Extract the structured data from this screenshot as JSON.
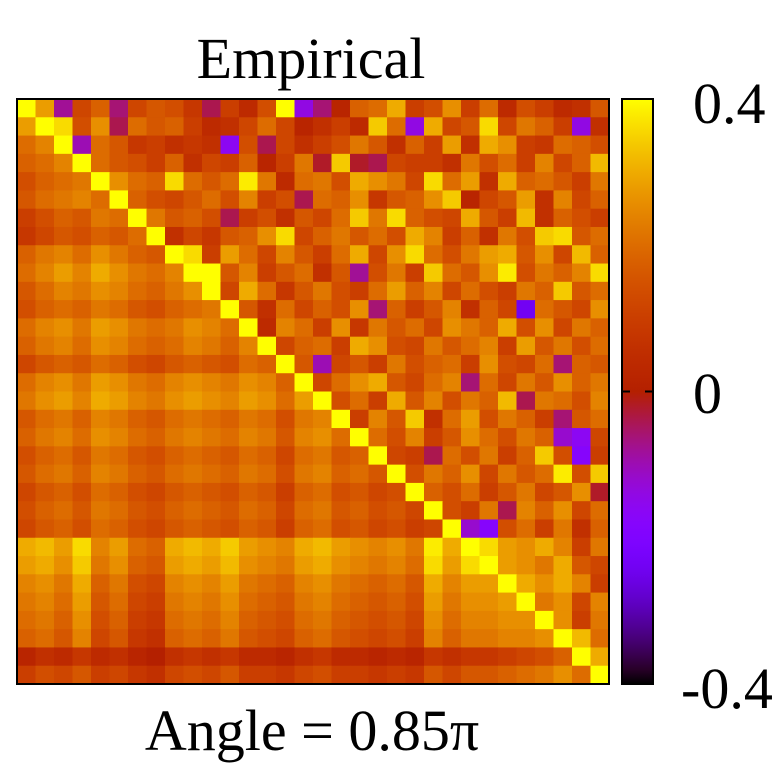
{
  "chart_data": {
    "type": "heatmap",
    "title": "Empirical",
    "xlabel": "Angle = 0.85π",
    "ylabel": "",
    "matrix_size": 32,
    "colorbar": {
      "min": -0.4,
      "max": 0.4,
      "tick_labels": [
        "0.4",
        "0",
        "-0.4"
      ],
      "tick_values": [
        0.4,
        0,
        -0.4
      ],
      "palette": "gnuplot (black-purple-red-orange-yellow)"
    },
    "colors": {
      "frame": "#000000",
      "background": "#ffffff"
    },
    "layout_notes": "Symmetric-looking correlation matrix with diagonal = 0.4 (yellow). Lower triangle smoother (orange, block structure), upper triangle noisier with scattered negative (purple) values.",
    "values": [
      [
        0.4,
        0.28,
        -0.08,
        0.12,
        0.18,
        -0.06,
        0.12,
        0.16,
        0.14,
        0.08,
        -0.04,
        0.1,
        0.04,
        0.14,
        0.4,
        -0.14,
        -0.06,
        0.02,
        0.18,
        0.2,
        0.3,
        0.1,
        0.14,
        0.26,
        0.1,
        0.2,
        0.04,
        0.14,
        0.1,
        0.04,
        0.06,
        0.16
      ],
      [
        0.28,
        0.4,
        0.36,
        0.14,
        0.26,
        -0.04,
        0.2,
        0.16,
        0.18,
        0.1,
        0.04,
        0.06,
        0.12,
        0.2,
        0.12,
        0.02,
        0.06,
        0.1,
        0.04,
        0.34,
        0.2,
        -0.14,
        0.3,
        0.12,
        0.16,
        0.36,
        0.12,
        0.22,
        0.18,
        0.1,
        -0.14,
        0.06
      ],
      [
        0.2,
        0.24,
        0.4,
        -0.1,
        0.2,
        0.16,
        0.08,
        0.1,
        0.06,
        0.08,
        0.06,
        -0.16,
        0.14,
        -0.04,
        0.12,
        0.06,
        0.1,
        0.14,
        0.22,
        0.16,
        0.06,
        0.18,
        0.1,
        0.28,
        0.06,
        0.3,
        0.26,
        0.1,
        0.08,
        0.2,
        0.18,
        0.14
      ],
      [
        0.18,
        0.2,
        0.24,
        0.4,
        0.2,
        0.16,
        0.14,
        0.1,
        0.18,
        0.06,
        0.12,
        0.1,
        0.18,
        0.02,
        0.1,
        0.22,
        -0.02,
        0.34,
        -0.02,
        -0.04,
        0.12,
        0.1,
        0.1,
        0.06,
        0.22,
        0.14,
        0.2,
        0.1,
        0.24,
        0.12,
        0.18,
        0.32
      ],
      [
        0.14,
        0.18,
        0.2,
        0.22,
        0.4,
        0.26,
        0.2,
        0.18,
        0.36,
        0.2,
        0.16,
        0.2,
        0.38,
        0.22,
        0.04,
        0.2,
        0.22,
        0.14,
        0.3,
        0.26,
        0.22,
        0.12,
        0.36,
        0.2,
        0.28,
        0.06,
        0.3,
        0.18,
        0.2,
        0.16,
        0.1,
        0.22
      ],
      [
        0.16,
        0.2,
        0.22,
        0.24,
        0.2,
        0.4,
        0.18,
        0.14,
        0.12,
        0.16,
        0.2,
        0.14,
        0.24,
        0.1,
        0.14,
        -0.04,
        0.2,
        0.18,
        0.26,
        0.08,
        0.16,
        0.18,
        0.26,
        0.34,
        0.02,
        0.12,
        0.16,
        0.28,
        0.06,
        0.24,
        0.12,
        0.18
      ],
      [
        0.1,
        0.14,
        0.18,
        0.16,
        0.22,
        0.2,
        0.4,
        0.22,
        0.16,
        0.18,
        0.14,
        -0.04,
        0.1,
        0.14,
        0.06,
        0.16,
        0.12,
        0.2,
        0.34,
        0.22,
        0.36,
        0.18,
        0.14,
        0.12,
        0.3,
        0.16,
        0.1,
        0.32,
        0.06,
        0.18,
        0.14,
        0.1
      ],
      [
        0.08,
        0.12,
        0.16,
        0.14,
        0.18,
        0.16,
        0.2,
        0.4,
        0.06,
        0.12,
        0.08,
        0.16,
        0.18,
        0.26,
        0.36,
        0.12,
        0.18,
        0.22,
        0.16,
        0.2,
        0.14,
        0.3,
        0.24,
        0.1,
        0.18,
        0.06,
        0.22,
        0.14,
        0.34,
        0.36,
        0.16,
        0.2
      ],
      [
        0.18,
        0.22,
        0.24,
        0.2,
        0.26,
        0.22,
        0.18,
        0.16,
        0.4,
        0.36,
        0.1,
        0.28,
        0.2,
        0.12,
        0.24,
        0.16,
        0.1,
        0.2,
        0.3,
        0.12,
        0.26,
        0.36,
        0.2,
        0.14,
        0.22,
        0.28,
        0.3,
        0.16,
        0.26,
        0.12,
        0.32,
        0.18
      ],
      [
        0.2,
        0.24,
        0.28,
        0.24,
        0.3,
        0.26,
        0.22,
        0.2,
        0.24,
        0.4,
        0.4,
        0.16,
        0.24,
        0.1,
        0.16,
        0.2,
        0.06,
        0.16,
        -0.08,
        0.14,
        0.22,
        0.1,
        0.34,
        0.2,
        0.16,
        0.26,
        0.38,
        0.14,
        0.22,
        0.18,
        0.24,
        0.36
      ],
      [
        0.16,
        0.2,
        0.24,
        0.22,
        0.26,
        0.24,
        0.2,
        0.18,
        0.22,
        0.26,
        0.4,
        0.12,
        0.3,
        0.2,
        0.08,
        0.16,
        0.22,
        0.14,
        0.1,
        0.2,
        0.28,
        0.18,
        0.24,
        0.12,
        0.2,
        0.14,
        0.1,
        0.22,
        0.18,
        0.34,
        0.16,
        0.2
      ],
      [
        0.14,
        0.18,
        0.2,
        0.18,
        0.22,
        0.2,
        0.16,
        0.14,
        0.18,
        0.2,
        0.22,
        0.4,
        0.16,
        0.06,
        0.2,
        0.12,
        0.18,
        0.14,
        0.26,
        -0.06,
        0.18,
        0.1,
        0.16,
        0.24,
        0.06,
        0.18,
        0.12,
        -0.24,
        0.2,
        0.16,
        0.12,
        0.26
      ],
      [
        0.2,
        0.24,
        0.26,
        0.22,
        0.28,
        0.26,
        0.22,
        0.2,
        0.22,
        0.26,
        0.24,
        0.2,
        0.4,
        0.04,
        0.24,
        0.2,
        0.1,
        0.26,
        0.08,
        0.22,
        0.16,
        0.2,
        0.12,
        0.26,
        0.22,
        0.18,
        0.3,
        0.14,
        0.26,
        0.12,
        0.22,
        0.18
      ],
      [
        0.18,
        0.22,
        0.24,
        0.2,
        0.26,
        0.24,
        0.2,
        0.18,
        0.2,
        0.24,
        0.22,
        0.18,
        0.24,
        0.4,
        0.12,
        0.18,
        0.2,
        0.1,
        0.3,
        0.26,
        0.14,
        0.12,
        0.22,
        0.16,
        0.2,
        0.24,
        0.1,
        0.28,
        0.16,
        0.22,
        0.14,
        0.2
      ],
      [
        0.12,
        0.16,
        0.18,
        0.16,
        0.2,
        0.18,
        0.14,
        0.12,
        0.16,
        0.18,
        0.16,
        0.14,
        0.2,
        0.18,
        0.4,
        0.16,
        -0.1,
        0.12,
        0.16,
        0.1,
        0.22,
        0.14,
        0.18,
        0.2,
        0.1,
        0.26,
        0.14,
        0.12,
        0.2,
        -0.06,
        0.18,
        0.16
      ],
      [
        0.2,
        0.24,
        0.26,
        0.22,
        0.28,
        0.26,
        0.22,
        0.2,
        0.24,
        0.26,
        0.24,
        0.22,
        0.26,
        0.24,
        0.18,
        0.4,
        0.12,
        0.2,
        0.26,
        0.3,
        0.16,
        0.12,
        0.2,
        0.24,
        -0.06,
        0.2,
        0.12,
        0.22,
        0.16,
        0.26,
        0.18,
        0.22
      ],
      [
        0.22,
        0.26,
        0.28,
        0.24,
        0.3,
        0.28,
        0.24,
        0.22,
        0.26,
        0.28,
        0.26,
        0.24,
        0.28,
        0.26,
        0.2,
        0.28,
        0.4,
        0.14,
        0.2,
        0.1,
        0.3,
        0.16,
        0.24,
        0.14,
        0.22,
        0.18,
        0.32,
        -0.04,
        0.22,
        0.2,
        0.14,
        0.24
      ],
      [
        0.16,
        0.2,
        0.22,
        0.18,
        0.24,
        0.22,
        0.18,
        0.16,
        0.2,
        0.22,
        0.2,
        0.18,
        0.22,
        0.2,
        0.14,
        0.22,
        0.24,
        0.4,
        0.1,
        0.24,
        0.16,
        0.34,
        0.06,
        0.2,
        0.28,
        0.14,
        0.22,
        0.18,
        0.1,
        -0.06,
        0.16,
        0.2
      ],
      [
        0.18,
        0.22,
        0.24,
        0.2,
        0.26,
        0.24,
        0.2,
        0.18,
        0.22,
        0.24,
        0.22,
        0.2,
        0.24,
        0.22,
        0.16,
        0.24,
        0.26,
        0.2,
        0.4,
        0.2,
        0.14,
        0.24,
        0.1,
        0.16,
        0.26,
        0.2,
        0.14,
        0.22,
        0.18,
        -0.12,
        -0.16,
        0.12
      ],
      [
        0.14,
        0.18,
        0.2,
        0.16,
        0.22,
        0.2,
        0.16,
        0.14,
        0.18,
        0.2,
        0.18,
        0.16,
        0.2,
        0.18,
        0.12,
        0.2,
        0.22,
        0.16,
        0.18,
        0.4,
        0.12,
        0.1,
        -0.04,
        0.2,
        0.14,
        0.22,
        0.1,
        0.18,
        0.34,
        0.14,
        -0.18,
        0.1
      ],
      [
        0.16,
        0.2,
        0.22,
        0.18,
        0.24,
        0.22,
        0.18,
        0.16,
        0.2,
        0.22,
        0.2,
        0.18,
        0.22,
        0.2,
        0.14,
        0.22,
        0.24,
        0.18,
        0.2,
        0.16,
        0.4,
        0.14,
        0.22,
        0.18,
        0.26,
        0.12,
        0.22,
        0.16,
        0.2,
        0.38,
        0.14,
        0.34
      ],
      [
        0.12,
        0.16,
        0.18,
        0.14,
        0.2,
        0.18,
        0.14,
        0.12,
        0.16,
        0.18,
        0.16,
        0.14,
        0.18,
        0.16,
        0.1,
        0.18,
        0.2,
        0.14,
        0.16,
        0.12,
        0.14,
        0.4,
        0.18,
        0.14,
        0.2,
        0.1,
        0.16,
        0.22,
        0.12,
        0.16,
        0.26,
        -0.02
      ],
      [
        0.14,
        0.18,
        0.2,
        0.16,
        0.22,
        0.2,
        0.16,
        0.14,
        0.18,
        0.2,
        0.18,
        0.16,
        0.2,
        0.18,
        0.12,
        0.2,
        0.22,
        0.16,
        0.18,
        0.14,
        0.16,
        0.12,
        0.4,
        0.14,
        0.1,
        0.22,
        -0.04,
        0.24,
        0.18,
        0.26,
        0.12,
        0.2
      ],
      [
        0.12,
        0.16,
        0.18,
        0.14,
        0.2,
        0.18,
        0.14,
        0.12,
        0.16,
        0.18,
        0.16,
        0.14,
        0.18,
        0.16,
        0.1,
        0.18,
        0.2,
        0.14,
        0.16,
        0.12,
        0.14,
        0.1,
        0.12,
        0.4,
        -0.12,
        -0.18,
        0.14,
        0.2,
        0.1,
        0.22,
        0.06,
        0.18
      ],
      [
        0.3,
        0.32,
        0.28,
        0.36,
        0.24,
        0.28,
        0.2,
        0.18,
        0.3,
        0.32,
        0.3,
        0.34,
        0.28,
        0.26,
        0.24,
        0.3,
        0.32,
        0.28,
        0.26,
        0.24,
        0.26,
        0.22,
        0.38,
        0.3,
        0.4,
        0.36,
        0.28,
        0.26,
        0.3,
        0.24,
        0.1,
        0.22
      ],
      [
        0.28,
        0.3,
        0.26,
        0.34,
        0.22,
        0.26,
        0.18,
        0.16,
        0.28,
        0.3,
        0.28,
        0.32,
        0.26,
        0.24,
        0.22,
        0.28,
        0.3,
        0.26,
        0.24,
        0.22,
        0.24,
        0.2,
        0.36,
        0.28,
        0.36,
        0.4,
        0.28,
        0.26,
        0.22,
        0.3,
        0.16,
        0.12
      ],
      [
        0.24,
        0.26,
        0.22,
        0.3,
        0.18,
        0.22,
        0.14,
        0.12,
        0.24,
        0.26,
        0.24,
        0.28,
        0.22,
        0.2,
        0.18,
        0.24,
        0.26,
        0.22,
        0.2,
        0.18,
        0.2,
        0.16,
        0.3,
        0.24,
        0.28,
        0.28,
        0.4,
        0.3,
        0.26,
        0.3,
        0.24,
        0.1
      ],
      [
        0.22,
        0.24,
        0.2,
        0.28,
        0.16,
        0.2,
        0.12,
        0.1,
        0.22,
        0.24,
        0.22,
        0.26,
        0.2,
        0.18,
        0.16,
        0.22,
        0.24,
        0.2,
        0.18,
        0.16,
        0.18,
        0.14,
        0.28,
        0.22,
        0.26,
        0.26,
        0.28,
        0.4,
        0.22,
        0.26,
        0.12,
        0.24
      ],
      [
        0.2,
        0.22,
        0.18,
        0.26,
        0.14,
        0.18,
        0.1,
        0.08,
        0.2,
        0.22,
        0.2,
        0.24,
        0.18,
        0.16,
        0.14,
        0.2,
        0.22,
        0.18,
        0.16,
        0.14,
        0.16,
        0.12,
        0.26,
        0.2,
        0.24,
        0.24,
        0.26,
        0.26,
        0.4,
        0.26,
        0.1,
        0.22
      ],
      [
        0.18,
        0.2,
        0.16,
        0.24,
        0.12,
        0.16,
        0.08,
        0.06,
        0.18,
        0.2,
        0.18,
        0.22,
        0.16,
        0.14,
        0.12,
        0.18,
        0.2,
        0.16,
        0.14,
        0.12,
        0.14,
        0.1,
        0.24,
        0.18,
        0.22,
        0.22,
        0.24,
        0.24,
        0.26,
        0.4,
        0.32,
        0.2
      ],
      [
        0.02,
        0.06,
        0.04,
        0.08,
        0.04,
        0.06,
        0.02,
        0.0,
        0.06,
        0.08,
        0.06,
        0.08,
        0.04,
        0.04,
        0.02,
        0.06,
        0.08,
        0.04,
        0.04,
        0.02,
        0.04,
        0.02,
        0.08,
        0.06,
        0.08,
        0.08,
        0.1,
        0.12,
        0.14,
        0.18,
        0.4,
        0.3
      ],
      [
        0.1,
        0.14,
        0.12,
        0.16,
        0.1,
        0.12,
        0.08,
        0.06,
        0.12,
        0.14,
        0.12,
        0.16,
        0.1,
        0.1,
        0.08,
        0.12,
        0.14,
        0.1,
        0.1,
        0.08,
        0.1,
        0.08,
        0.16,
        0.12,
        0.16,
        0.16,
        0.18,
        0.2,
        0.22,
        0.26,
        0.2,
        0.4
      ]
    ]
  }
}
